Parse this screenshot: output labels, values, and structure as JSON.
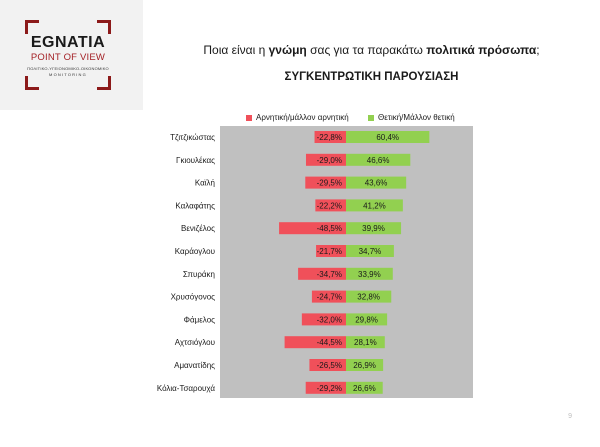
{
  "logo": {
    "name": "EGNATIA",
    "tagline": "POINT OF VIEW",
    "line1": "ΠΟΛΙΤΙΚΟ-ΥΓΕΙΟΝΟΜΙΚΟ-ΟΙΚΟΝΟΜΙΚΟ",
    "line2": "MONITORING"
  },
  "header": {
    "question_part1": "Ποια είναι η ",
    "question_bold1": "γνώμη",
    "question_part2": " σας για τα παρακάτω ",
    "question_bold2": "πολιτικά πρόσωπα",
    "question_part3": ";",
    "subtitle": "ΣΥΓΚΕΝΤΡΩΤΙΚΗ ΠΑΡΟΥΣΙΑΣΗ"
  },
  "page_number": "9",
  "colors": {
    "negative": "#f0505a",
    "positive": "#92d050",
    "plot_bg": "#c0c0c0"
  },
  "chart_data": {
    "type": "bar",
    "orientation": "horizontal-diverging",
    "categories": [
      "Τζιτζικώστας",
      "Γκιουλέκας",
      "Καϊλή",
      "Καλαφάτης",
      "Βενιζέλος",
      "Καράογλου",
      "Σπυράκη",
      "Χρυσόγονος",
      "Φάμελος",
      "Αχτσιόγλου",
      "Αμανατίδης",
      "Κόλια-Τσαρουχά"
    ],
    "series": [
      {
        "name": "Αρνητική/μάλλον αρνητική",
        "color": "#f0505a",
        "values": [
          -22.8,
          -29.0,
          -29.5,
          -22.2,
          -48.5,
          -21.7,
          -34.7,
          -24.7,
          -32.0,
          -44.5,
          -26.5,
          -29.2
        ],
        "labels": [
          "-22,8%",
          "-29,0%",
          "-29,5%",
          "-22,2%",
          "-48,5%",
          "-21,7%",
          "-34,7%",
          "-24,7%",
          "-32,0%",
          "-44,5%",
          "-26,5%",
          "-29,2%"
        ]
      },
      {
        "name": "Θετική/Μάλλον θετική",
        "color": "#92d050",
        "values": [
          60.4,
          46.6,
          43.6,
          41.2,
          39.9,
          34.7,
          33.9,
          32.8,
          29.8,
          28.1,
          26.9,
          26.6
        ],
        "labels": [
          "60,4%",
          "46,6%",
          "43,6%",
          "41,2%",
          "39,9%",
          "34,7%",
          "33,9%",
          "32,8%",
          "29,8%",
          "28,1%",
          "26,9%",
          "26,6%"
        ]
      }
    ],
    "legend_position": "top",
    "grid": false
  }
}
